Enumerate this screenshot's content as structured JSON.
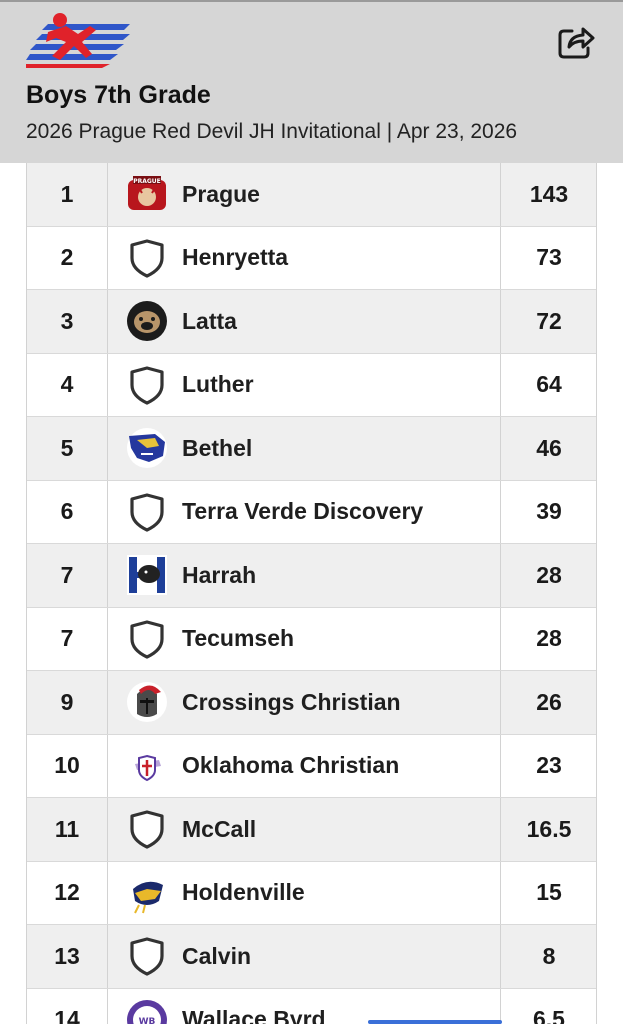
{
  "header": {
    "title": "Boys 7th Grade",
    "subtitle": "2026 Prague Red Devil JH Invitational | Apr 23, 2026",
    "logo_icon": "runner-flag-logo",
    "share_icon": "share-icon"
  },
  "colors": {
    "header_bg": "#d6d6d6",
    "row_shade": "#efefef",
    "brand_red": "#e0222a",
    "brand_blue": "#2f56c9"
  },
  "standings": [
    {
      "rank": "1",
      "team": "Prague",
      "score": "143",
      "logo": "prague-red-devils-logo"
    },
    {
      "rank": "2",
      "team": "Henryetta",
      "score": "73",
      "logo": "shield-icon"
    },
    {
      "rank": "3",
      "team": "Latta",
      "score": "72",
      "logo": "panther-logo"
    },
    {
      "rank": "4",
      "team": "Luther",
      "score": "64",
      "logo": "shield-icon"
    },
    {
      "rank": "5",
      "team": "Bethel",
      "score": "46",
      "logo": "wildcat-logo"
    },
    {
      "rank": "6",
      "team": "Terra Verde Discovery",
      "score": "39",
      "logo": "shield-icon"
    },
    {
      "rank": "7",
      "team": "Harrah",
      "score": "28",
      "logo": "harrah-panther-logo"
    },
    {
      "rank": "7",
      "team": "Tecumseh",
      "score": "28",
      "logo": "shield-icon"
    },
    {
      "rank": "9",
      "team": "Crossings Christian",
      "score": "26",
      "logo": "knight-helmet-logo"
    },
    {
      "rank": "10",
      "team": "Oklahoma Christian",
      "score": "23",
      "logo": "crusader-logo"
    },
    {
      "rank": "11",
      "team": "McCall",
      "score": "16.5",
      "logo": "shield-icon"
    },
    {
      "rank": "12",
      "team": "Holdenville",
      "score": "15",
      "logo": "wolverine-logo"
    },
    {
      "rank": "13",
      "team": "Calvin",
      "score": "8",
      "logo": "shield-icon"
    },
    {
      "rank": "14",
      "team": "Wallace Byrd",
      "score": "6.5",
      "logo": "wallace-byrd-logo"
    }
  ]
}
